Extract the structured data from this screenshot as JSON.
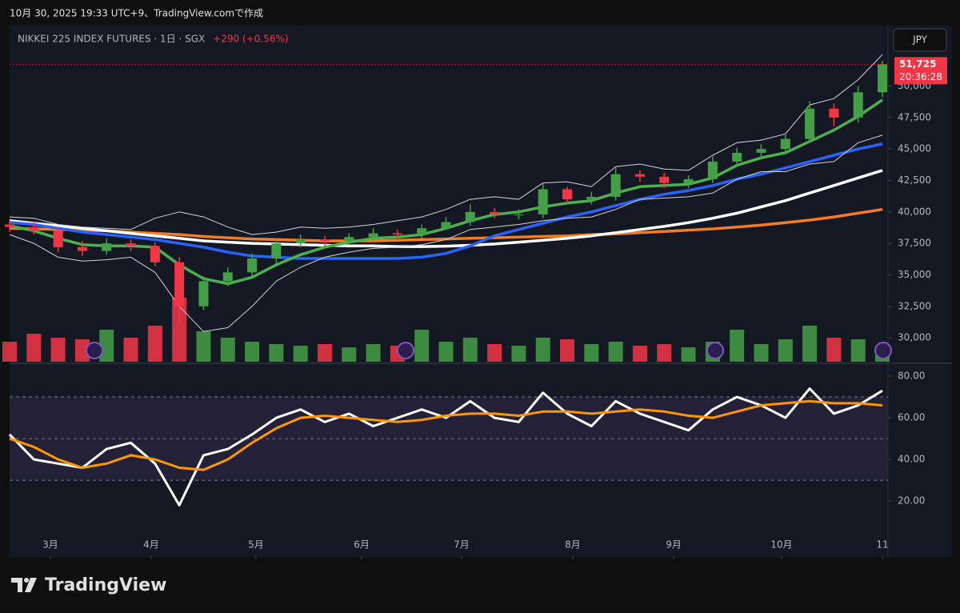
{
  "header": {
    "caption": "10月 30, 2025 19:33 UTC+9、TradingView.comで作成"
  },
  "chart_data": {
    "type": "candlestick",
    "title": "NIKKEI 225 INDEX FUTURES · 1日 · SGX",
    "change": "+290 (+0.56%)",
    "currency": "JPY",
    "countdown": "20:36:28",
    "last_price": {
      "value": 51725,
      "label": "51,725"
    },
    "up_color": "#43a047",
    "down_color": "#f23645",
    "x": [
      0,
      1,
      2,
      3,
      4,
      5,
      6,
      7,
      8,
      9,
      10,
      11,
      12,
      13,
      14,
      15,
      16,
      17,
      18,
      19,
      20,
      21,
      22,
      23,
      24,
      25,
      26,
      27,
      28,
      29,
      30,
      31,
      32,
      33,
      34,
      35,
      36
    ],
    "xlim": [
      0,
      36
    ],
    "xticks": [
      {
        "value": 1.68,
        "label": "3月"
      },
      {
        "value": 5.84,
        "label": "4月"
      },
      {
        "value": 10.16,
        "label": "5月"
      },
      {
        "value": 14.52,
        "label": "6月"
      },
      {
        "value": 18.64,
        "label": "7月"
      },
      {
        "value": 23.23,
        "label": "8月"
      },
      {
        "value": 27.39,
        "label": "9月"
      },
      {
        "value": 31.84,
        "label": "10月"
      },
      {
        "value": 36,
        "label": "11"
      }
    ],
    "ylim": [
      28100,
      54800
    ],
    "yticks": [
      {
        "value": 30000,
        "label": "30,000"
      },
      {
        "value": 32500,
        "label": "32,500"
      },
      {
        "value": 35000,
        "label": "35,000"
      },
      {
        "value": 37500,
        "label": "37,500"
      },
      {
        "value": 40000,
        "label": "40,000"
      },
      {
        "value": 42500,
        "label": "42,500"
      },
      {
        "value": 45000,
        "label": "45,000"
      },
      {
        "value": 47500,
        "label": "47,500"
      },
      {
        "value": 50000,
        "label": "50,000"
      }
    ],
    "open": [
      39000,
      38800,
      38500,
      37200,
      36900,
      37500,
      37300,
      36000,
      32500,
      34500,
      35200,
      36300,
      37500,
      37800,
      37700,
      38000,
      38300,
      38200,
      38700,
      39200,
      40000,
      39800,
      39800,
      41800,
      41000,
      41200,
      43000,
      42800,
      42300,
      42600,
      44000,
      44700,
      45000,
      45800,
      48200,
      47500,
      49500
    ],
    "high": [
      39300,
      39200,
      38800,
      37700,
      37900,
      37800,
      37600,
      36400,
      34900,
      35600,
      36700,
      37900,
      38200,
      38100,
      38300,
      38700,
      38600,
      39000,
      39600,
      40600,
      40300,
      40200,
      42300,
      42000,
      41600,
      43500,
      43300,
      43100,
      42900,
      44400,
      45100,
      45400,
      46300,
      48800,
      48600,
      50000,
      52000
    ],
    "low": [
      38400,
      38200,
      36800,
      36500,
      36600,
      36900,
      35700,
      31200,
      32200,
      34100,
      34900,
      35900,
      37200,
      37300,
      37400,
      37700,
      37900,
      37900,
      38700,
      38900,
      39500,
      39400,
      39500,
      40700,
      40600,
      40900,
      42400,
      41900,
      41900,
      42300,
      43600,
      44300,
      44600,
      45500,
      46800,
      47100,
      49100
    ],
    "close": [
      38800,
      38500,
      37200,
      36900,
      37500,
      37300,
      36000,
      32500,
      34500,
      35200,
      36300,
      37500,
      37800,
      37700,
      38000,
      38300,
      38200,
      38700,
      39200,
      40000,
      39800,
      39800,
      41800,
      41000,
      41200,
      43000,
      42800,
      42300,
      42600,
      44000,
      44700,
      45000,
      45800,
      48200,
      47500,
      49500,
      51725
    ],
    "lines": [
      {
        "color": "#f57c20",
        "width": 3.5,
        "values": [
          38700,
          38650,
          38600,
          38550,
          38500,
          38400,
          38300,
          38200,
          38050,
          37950,
          37850,
          37800,
          37750,
          37700,
          37700,
          37700,
          37750,
          37800,
          37850,
          37900,
          37950,
          38000,
          38050,
          38100,
          38200,
          38250,
          38350,
          38450,
          38550,
          38650,
          38800,
          38950,
          39150,
          39350,
          39600,
          39900,
          40200
        ]
      },
      {
        "color": "#ffffff",
        "width": 3.5,
        "values": [
          39300,
          39100,
          38900,
          38700,
          38500,
          38300,
          38100,
          37900,
          37700,
          37600,
          37500,
          37450,
          37400,
          37350,
          37300,
          37300,
          37250,
          37250,
          37280,
          37350,
          37450,
          37600,
          37750,
          37900,
          38100,
          38350,
          38600,
          38850,
          39150,
          39500,
          39900,
          40400,
          40900,
          41500,
          42100,
          42700,
          43300
        ]
      },
      {
        "color": "#2962ff",
        "width": 3.5,
        "values": [
          39170,
          39000,
          38700,
          38400,
          38200,
          38000,
          37800,
          37500,
          37200,
          36800,
          36500,
          36400,
          36300,
          36300,
          36300,
          36300,
          36300,
          36400,
          36700,
          37300,
          38100,
          38600,
          39100,
          39600,
          40000,
          40500,
          41000,
          41400,
          41700,
          42100,
          42600,
          43000,
          43500,
          44000,
          44500,
          45000,
          45400
        ]
      },
      {
        "color": "#4caf50",
        "width": 3.5,
        "values": [
          38900,
          38500,
          37900,
          37400,
          37300,
          37300,
          37200,
          35800,
          34700,
          34300,
          34800,
          35800,
          36600,
          37200,
          37600,
          37900,
          38000,
          38200,
          38700,
          39300,
          39800,
          40000,
          40400,
          40700,
          40900,
          41500,
          42000,
          42100,
          42200,
          42700,
          43700,
          44300,
          44700,
          45600,
          46500,
          47600,
          48900
        ]
      },
      {
        "color": "#d1d4dc",
        "width": 1,
        "values": [
          39600,
          39500,
          39000,
          38800,
          38700,
          38600,
          39500,
          40000,
          39600,
          38800,
          38200,
          38400,
          38800,
          38700,
          38800,
          39000,
          39300,
          39600,
          40200,
          41000,
          41200,
          41000,
          42300,
          42400,
          42000,
          43600,
          43800,
          43400,
          43300,
          44500,
          45500,
          45700,
          46200,
          48500,
          49000,
          50500,
          52500
        ]
      },
      {
        "color": "#d1d4dc",
        "width": 1,
        "values": [
          38200,
          37500,
          36400,
          36100,
          36200,
          36400,
          35200,
          32500,
          30500,
          30800,
          32500,
          34500,
          35600,
          36400,
          36800,
          37100,
          37200,
          37400,
          37800,
          38600,
          38800,
          39000,
          39300,
          39500,
          39600,
          40200,
          41000,
          41100,
          41200,
          41500,
          42600,
          43200,
          43200,
          43800,
          44000,
          45500,
          46100
        ]
      }
    ],
    "volume": {
      "vlim": [
        0,
        100
      ],
      "values": [
        25,
        35,
        30,
        28,
        40,
        30,
        45,
        80,
        38,
        30,
        25,
        22,
        20,
        22,
        18,
        22,
        20,
        40,
        25,
        30,
        22,
        20,
        30,
        28,
        22,
        25,
        20,
        22,
        18,
        25,
        40,
        22,
        28,
        45,
        30,
        28,
        20
      ]
    },
    "oscillator": {
      "ylim": [
        -6.5,
        85.4
      ],
      "yticks": [
        {
          "value": 20,
          "label": "20.00"
        },
        {
          "value": 40,
          "label": "40.00"
        },
        {
          "value": 60,
          "label": "60.00"
        },
        {
          "value": 80,
          "label": "80.00"
        }
      ],
      "levels": [
        30,
        50,
        70
      ],
      "band_color": "#2a2440",
      "series": [
        {
          "color": "#ffffff",
          "values": [
            52,
            40,
            38,
            36,
            45,
            48,
            38,
            18,
            42,
            45,
            52,
            60,
            64,
            58,
            62,
            56,
            60,
            64,
            60,
            68,
            60,
            58,
            72,
            62,
            56,
            68,
            62,
            58,
            54,
            64,
            70,
            66,
            60,
            74,
            62,
            66,
            73
          ]
        },
        {
          "color": "#ff9800",
          "values": [
            50,
            46,
            40,
            36,
            38,
            42,
            40,
            36,
            35,
            40,
            48,
            55,
            60,
            61,
            60,
            59,
            58,
            59,
            61,
            62,
            62,
            61,
            63,
            63,
            62,
            63,
            64,
            63,
            61,
            60,
            63,
            66,
            67,
            68,
            67,
            67,
            66
          ]
        }
      ]
    }
  },
  "footer": {
    "brand": "TradingView"
  }
}
